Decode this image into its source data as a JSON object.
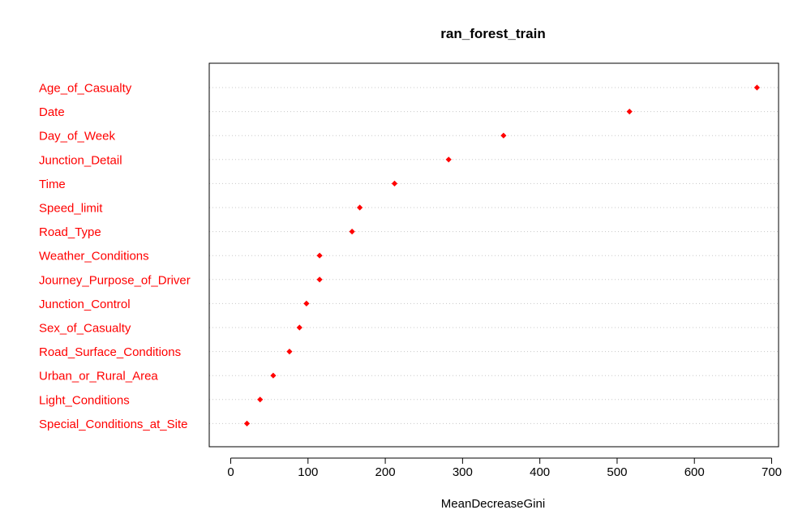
{
  "chart_data": {
    "type": "scatter",
    "title": "ran_forest_train",
    "xlabel": "MeanDecreaseGini",
    "ylabel": "",
    "xlim": [
      -30,
      710
    ],
    "x_ticks": [
      "0",
      "100",
      "200",
      "300",
      "400",
      "500",
      "600",
      "700"
    ],
    "grid": "dotted horizontal",
    "point_color": "#ff0000",
    "label_color": "#ff0000",
    "categories": [
      "Age_of_Casualty",
      "Date",
      "Day_of_Week",
      "Junction_Detail",
      "Time",
      "Speed_limit",
      "Road_Type",
      "Weather_Conditions",
      "Journey_Purpose_of_Driver",
      "Junction_Control",
      "Sex_of_Casualty",
      "Road_Surface_Conditions",
      "Urban_or_Rural_Area",
      "Light_Conditions",
      "Special_Conditions_at_Site"
    ],
    "values": [
      681,
      516,
      353,
      282,
      212,
      167,
      157,
      115,
      115,
      98,
      89,
      76,
      55,
      38,
      21
    ]
  }
}
